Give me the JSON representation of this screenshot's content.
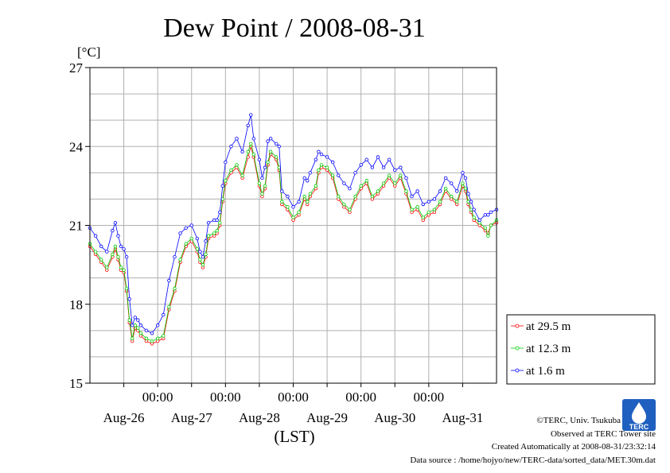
{
  "chart_data": {
    "type": "line",
    "title": "Dew Point / 2008-08-31",
    "ylabel": "[°C]",
    "xlabel": "(LST)",
    "ylim": [
      15,
      27
    ],
    "yticks": [
      "15",
      "18",
      "21",
      "24",
      "27"
    ],
    "xlim_hours": [
      0,
      144
    ],
    "x_time_labels": [
      {
        "label": "00:00",
        "hour": 24
      },
      {
        "label": "00:00",
        "hour": 48
      },
      {
        "label": "00:00",
        "hour": 72
      },
      {
        "label": "00:00",
        "hour": 96
      },
      {
        "label": "00:00",
        "hour": 120
      }
    ],
    "x_day_labels": [
      {
        "label": "Aug-26",
        "hour": 12
      },
      {
        "label": "Aug-27",
        "hour": 36
      },
      {
        "label": "Aug-28",
        "hour": 60
      },
      {
        "label": "Aug-29",
        "hour": 84
      },
      {
        "label": "Aug-30",
        "hour": 108
      },
      {
        "label": "Aug-31",
        "hour": 132
      }
    ],
    "grid": true,
    "legend_position": "right-bottom, outside plot",
    "series": [
      {
        "name": "at 29.5 m",
        "color": "#ff0000",
        "x": [
          0,
          2,
          4,
          6,
          8,
          9,
          10,
          11,
          12,
          13,
          14,
          15,
          16,
          17,
          18,
          20,
          22,
          24,
          26,
          28,
          30,
          32,
          34,
          36,
          38,
          39,
          40,
          41,
          42,
          44,
          45,
          46,
          47,
          48,
          50,
          52,
          54,
          56,
          57,
          58,
          60,
          61,
          62,
          63,
          64,
          66,
          67,
          68,
          70,
          72,
          74,
          76,
          77,
          78,
          80,
          81,
          82,
          84,
          86,
          88,
          90,
          92,
          94,
          96,
          98,
          100,
          102,
          104,
          106,
          108,
          110,
          112,
          114,
          116,
          118,
          120,
          122,
          124,
          126,
          128,
          130,
          132,
          133,
          134,
          135,
          136,
          138,
          140,
          141,
          142,
          144
        ],
        "y": [
          20.2,
          19.9,
          19.6,
          19.3,
          19.8,
          20.1,
          19.7,
          19.3,
          19.2,
          18.5,
          17.3,
          16.6,
          17.1,
          17.0,
          16.8,
          16.6,
          16.5,
          16.6,
          16.7,
          17.8,
          18.5,
          19.6,
          20.2,
          20.4,
          20.0,
          19.6,
          19.4,
          19.8,
          20.5,
          20.6,
          20.7,
          21.0,
          21.9,
          22.6,
          23.0,
          23.2,
          22.8,
          23.6,
          24.0,
          23.6,
          22.5,
          22.1,
          22.4,
          23.3,
          23.7,
          23.5,
          23.1,
          21.8,
          21.6,
          21.2,
          21.4,
          22.0,
          21.8,
          22.1,
          22.4,
          23.0,
          23.2,
          23.1,
          22.8,
          22.0,
          21.7,
          21.5,
          22.0,
          22.4,
          22.6,
          22.0,
          22.2,
          22.5,
          22.8,
          22.5,
          22.8,
          22.2,
          21.5,
          21.6,
          21.2,
          21.4,
          21.5,
          21.8,
          22.3,
          22.0,
          21.8,
          22.5,
          22.3,
          21.8,
          21.5,
          21.2,
          21.0,
          20.8,
          20.7,
          21.0,
          21.1
        ]
      },
      {
        "name": "at 12.3 m",
        "color": "#00cc00",
        "x": [
          0,
          2,
          4,
          6,
          8,
          9,
          10,
          11,
          12,
          13,
          14,
          15,
          16,
          17,
          18,
          20,
          22,
          24,
          26,
          28,
          30,
          32,
          34,
          36,
          38,
          39,
          40,
          41,
          42,
          44,
          45,
          46,
          47,
          48,
          50,
          52,
          54,
          56,
          57,
          58,
          60,
          61,
          62,
          63,
          64,
          66,
          67,
          68,
          70,
          72,
          74,
          76,
          77,
          78,
          80,
          81,
          82,
          84,
          86,
          88,
          90,
          92,
          94,
          96,
          98,
          100,
          102,
          104,
          106,
          108,
          110,
          112,
          114,
          116,
          118,
          120,
          122,
          124,
          126,
          128,
          130,
          132,
          133,
          134,
          135,
          136,
          138,
          140,
          141,
          142,
          144
        ],
        "y": [
          20.3,
          20.0,
          19.7,
          19.4,
          19.9,
          20.2,
          19.8,
          19.4,
          19.3,
          18.6,
          17.4,
          16.7,
          17.2,
          17.1,
          16.9,
          16.7,
          16.6,
          16.7,
          16.8,
          17.9,
          18.6,
          19.7,
          20.3,
          20.5,
          20.1,
          19.7,
          19.5,
          19.9,
          20.6,
          20.7,
          20.8,
          21.1,
          22.0,
          22.7,
          23.1,
          23.3,
          22.9,
          23.8,
          24.1,
          23.7,
          22.6,
          22.2,
          22.5,
          23.4,
          23.8,
          23.6,
          23.2,
          21.9,
          21.7,
          21.3,
          21.5,
          22.1,
          21.9,
          22.2,
          22.5,
          23.1,
          23.3,
          23.2,
          22.9,
          22.1,
          21.8,
          21.6,
          22.1,
          22.5,
          22.7,
          22.1,
          22.3,
          22.6,
          22.9,
          22.6,
          22.9,
          22.3,
          21.6,
          21.7,
          21.3,
          21.5,
          21.6,
          21.9,
          22.4,
          22.1,
          21.9,
          22.6,
          22.4,
          21.9,
          21.6,
          21.3,
          21.1,
          20.9,
          20.6,
          21.0,
          21.2
        ]
      },
      {
        "name": "at 1.6 m",
        "color": "#0000ff",
        "x": [
          0,
          2,
          4,
          6,
          8,
          9,
          10,
          11,
          12,
          13,
          14,
          15,
          16,
          17,
          18,
          20,
          22,
          24,
          26,
          28,
          30,
          32,
          34,
          36,
          38,
          39,
          40,
          41,
          42,
          44,
          45,
          46,
          47,
          48,
          50,
          52,
          54,
          56,
          57,
          58,
          60,
          61,
          62,
          63,
          64,
          66,
          67,
          68,
          70,
          72,
          74,
          76,
          77,
          78,
          80,
          81,
          82,
          84,
          86,
          88,
          90,
          92,
          94,
          96,
          98,
          100,
          102,
          104,
          106,
          108,
          110,
          112,
          114,
          116,
          118,
          120,
          122,
          124,
          126,
          128,
          130,
          132,
          133,
          134,
          135,
          136,
          138,
          140,
          141,
          142,
          144
        ],
        "y": [
          20.9,
          20.6,
          20.2,
          20.0,
          20.8,
          21.1,
          20.6,
          20.2,
          20.1,
          19.8,
          18.2,
          17.2,
          17.5,
          17.4,
          17.2,
          17.0,
          16.9,
          17.2,
          17.6,
          18.9,
          19.8,
          20.7,
          20.9,
          21.0,
          20.5,
          20.0,
          19.8,
          20.4,
          21.1,
          21.2,
          21.2,
          21.5,
          22.5,
          23.4,
          24.0,
          24.3,
          23.8,
          24.8,
          25.2,
          24.3,
          23.5,
          22.8,
          23.2,
          24.2,
          24.3,
          24.1,
          24.0,
          22.3,
          22.1,
          21.7,
          21.9,
          22.8,
          22.7,
          23.0,
          23.5,
          23.8,
          23.7,
          23.6,
          23.4,
          22.9,
          22.6,
          22.4,
          23.0,
          23.3,
          23.5,
          23.2,
          23.6,
          23.2,
          23.5,
          23.1,
          23.2,
          22.8,
          22.1,
          22.3,
          21.8,
          21.9,
          22.0,
          22.3,
          22.8,
          22.6,
          22.3,
          23.0,
          22.8,
          22.2,
          21.9,
          21.6,
          21.2,
          21.4,
          21.4,
          21.5,
          21.6
        ]
      }
    ]
  },
  "credits": {
    "copyright": "©TERC, Univ. Tsukuba",
    "observed": "Observed at TERC Tower site",
    "created": "Created Automatically at 2008-08-31/23:32:14",
    "source": "Data source : /home/hojyo/new/TERC-data/sorted_data/MET.30m.dat",
    "logo_text": "TERC"
  }
}
